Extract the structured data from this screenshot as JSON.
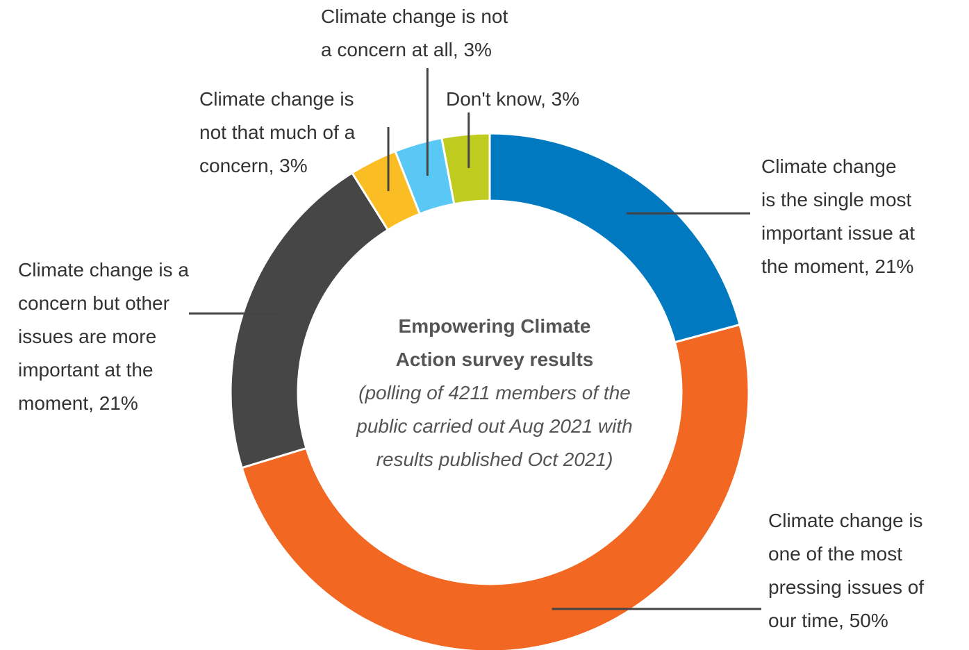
{
  "chart_data": {
    "type": "pie",
    "center_title": "Empowering Climate\nAction survey results",
    "center_subtitle": "(polling of 4211 members of the\npublic carried out Aug 2021 with\nresults published Oct 2021)",
    "slices": [
      {
        "label": "Climate change\nis the single most\nimportant issue at\nthe moment, 21%",
        "value": 21,
        "color": "#0079c1"
      },
      {
        "label": "Climate change is\none of the most\npressing issues of\nour time, 50%",
        "value": 50,
        "color": "#f26722"
      },
      {
        "label": "Climate change is a\nconcern but other\nissues are more\nimportant at the\nmoment, 21%",
        "value": 21,
        "color": "#464646"
      },
      {
        "label": "Climate change is\nnot that much of a\nconcern, 3%",
        "value": 3,
        "color": "#fbbd24"
      },
      {
        "label": "Climate change is not\na concern at all, 3%",
        "value": 3,
        "color": "#5ac8f5"
      },
      {
        "label": "Don't know, 3%",
        "value": 3,
        "color": "#bfcb1f"
      }
    ]
  }
}
